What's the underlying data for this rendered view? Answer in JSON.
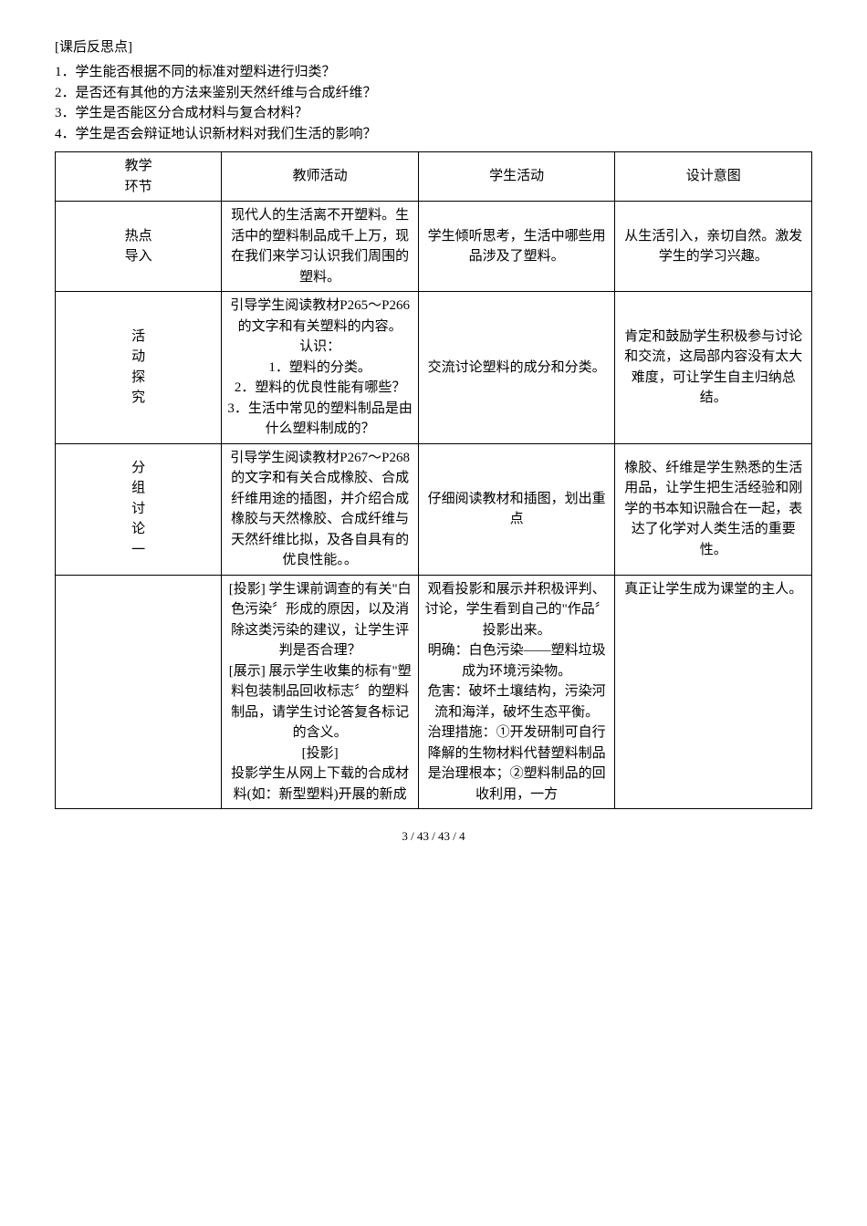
{
  "reflection": {
    "title": "[课后反思点]",
    "items": [
      "1．学生能否根据不同的标准对塑料进行归类？",
      "2．是否还有其他的方法来鉴别天然纤维与合成纤维？",
      "3．学生是否能区分合成材料与复合材料？",
      "4．学生是否会辩证地认识新材料对我们生活的影响？"
    ]
  },
  "table": {
    "header": [
      "教学\n环节",
      "教师活动",
      "学生活动",
      "设计意图"
    ],
    "rows": [
      {
        "c0": "热点\n导入",
        "c1": "现代人的生活离不开塑料。生活中的塑料制品成千上万，现在我们来学习认识我们周围的塑料。",
        "c2": "学生倾听思考，生活中哪些用品涉及了塑料。",
        "c3": "从生活引入，亲切自然。激发学生的学习兴趣。"
      },
      {
        "c0": "活\n动\n探\n究",
        "c1": "引导学生阅读教材P265～P266的文字和有关塑料的内容。\n认识：\n1．塑料的分类。\n2．塑料的优良性能有哪些？\n3．生活中常见的塑料制品是由什么塑料制成的？",
        "c2": "交流讨论塑料的成分和分类。",
        "c3": "肯定和鼓励学生积极参与讨论和交流，这局部内容没有太大难度，可让学生自主归纳总结。"
      },
      {
        "c0": "分\n组\n讨\n论\n一",
        "c1": "引导学生阅读教材P267～P268的文字和有关合成橡胶、合成纤维用途的插图，并介绍合成橡胶与天然橡胶、合成纤维与天然纤维比拟，及各自具有的优良性能。。",
        "c2": "仔细阅读教材和插图，划出重点",
        "c3": "橡胶、纤维是学生熟悉的生活用品，让学生把生活经验和刚学的书本知识融合在一起，表达了化学对人类生活的重要性。"
      },
      {
        "c0": "",
        "c1": "[投影] 学生课前调查的有关\"白色污染〞形成的原因，以及消除这类污染的建议，让学生评判是否合理？\n[展示] 展示学生收集的标有\"塑料包装制品回收标志〞的塑料制品，请学生讨论答复各标记的含义。\n[投影]\n投影学生从网上下载的合成材料(如：新型塑料)开展的新成",
        "c2": "观看投影和展示并积极评判、讨论，学生看到自己的\"作品〞投影出来。\n明确：白色污染——塑料垃圾成为环境污染物。\n危害：破坏土壤结构，污染河流和海洋，破坏生态平衡。\n治理措施：①开发研制可自行降解的生物材料代替塑料制品是治理根本；②塑料制品的回收利用，一方",
        "c3": "真正让学生成为课堂的主人。"
      }
    ]
  },
  "footer": "3 / 43 / 43 / 4"
}
